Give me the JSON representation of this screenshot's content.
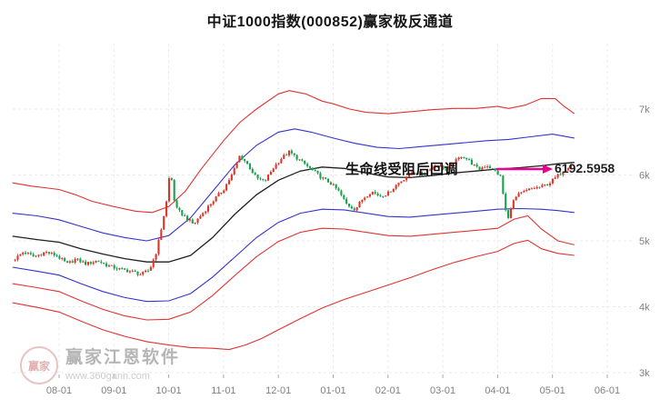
{
  "price_label": "6192.5958",
  "watermark": {
    "brand": "赢家江恩软件",
    "url": "www.360gann.com",
    "logo_text": "赢家"
  },
  "colors": {
    "up": "#dd3428",
    "down": "#18a14d",
    "channel_red": "#e03232",
    "channel_blue": "#3333cc",
    "lifeline": "#202020",
    "arrow": "#ec008c",
    "axis_text": "#808080",
    "grid": "#ebebeb"
  },
  "chart_data": {
    "type": "candlestick",
    "title": "中证1000指数(000852)赢家极反通道",
    "index_name": "中证1000指数",
    "symbol": "000852",
    "annotation": "生命线受阻后回调",
    "last_price": 6192.5958,
    "legend": "none",
    "grid": true,
    "x_axis": {
      "tick_labels": [
        "08-01",
        "09-01",
        "10-01",
        "11-01",
        "12-01",
        "01-01",
        "02-01",
        "03-01",
        "04-01",
        "05-01",
        "06-01"
      ]
    },
    "y_axis": {
      "tick_labels": [
        "7k",
        "6k",
        "5k",
        "4k",
        "3k"
      ],
      "tick_values": [
        7000,
        6000,
        5000,
        4000,
        3000
      ],
      "range": [
        3000,
        8030
      ]
    },
    "candles": {
      "t_start": -0.85,
      "t_end": 9.38,
      "t_step": 0.0476,
      "close_anchors": [
        [
          -0.85,
          4700
        ],
        [
          -0.65,
          4830
        ],
        [
          -0.45,
          4760
        ],
        [
          -0.25,
          4830
        ],
        [
          -0.05,
          4780
        ],
        [
          0.15,
          4650
        ],
        [
          0.3,
          4720
        ],
        [
          0.5,
          4650
        ],
        [
          0.7,
          4700
        ],
        [
          0.9,
          4620
        ],
        [
          1.1,
          4570
        ],
        [
          1.3,
          4540
        ],
        [
          1.5,
          4490
        ],
        [
          1.65,
          4560
        ],
        [
          1.78,
          4850
        ],
        [
          1.88,
          5250
        ],
        [
          1.96,
          5600
        ],
        [
          2.02,
          6050
        ],
        [
          2.06,
          5900
        ],
        [
          2.12,
          5500
        ],
        [
          2.25,
          5400
        ],
        [
          2.45,
          5250
        ],
        [
          2.6,
          5400
        ],
        [
          2.8,
          5600
        ],
        [
          3.0,
          5780
        ],
        [
          3.15,
          6000
        ],
        [
          3.3,
          6300
        ],
        [
          3.45,
          6150
        ],
        [
          3.6,
          5950
        ],
        [
          3.75,
          5900
        ],
        [
          3.9,
          6100
        ],
        [
          4.05,
          6250
        ],
        [
          4.2,
          6350
        ],
        [
          4.35,
          6250
        ],
        [
          4.5,
          6150
        ],
        [
          4.65,
          6050
        ],
        [
          4.8,
          5950
        ],
        [
          4.95,
          5880
        ],
        [
          5.1,
          5750
        ],
        [
          5.25,
          5550
        ],
        [
          5.4,
          5480
        ],
        [
          5.55,
          5650
        ],
        [
          5.7,
          5750
        ],
        [
          5.85,
          5680
        ],
        [
          6.0,
          5720
        ],
        [
          6.15,
          5850
        ],
        [
          6.3,
          5950
        ],
        [
          6.45,
          6050
        ],
        [
          6.6,
          6000
        ],
        [
          6.75,
          6100
        ],
        [
          6.9,
          6150
        ],
        [
          7.05,
          6080
        ],
        [
          7.2,
          6180
        ],
        [
          7.35,
          6300
        ],
        [
          7.5,
          6200
        ],
        [
          7.65,
          6080
        ],
        [
          7.8,
          6150
        ],
        [
          7.95,
          6060
        ],
        [
          8.05,
          5980
        ],
        [
          8.12,
          5600
        ],
        [
          8.18,
          5280
        ],
        [
          8.25,
          5550
        ],
        [
          8.35,
          5680
        ],
        [
          8.5,
          5750
        ],
        [
          8.65,
          5800
        ],
        [
          8.8,
          5820
        ],
        [
          8.95,
          5880
        ],
        [
          9.1,
          5990
        ],
        [
          9.25,
          6100
        ],
        [
          9.38,
          6192
        ]
      ]
    },
    "channel_lines": [
      {
        "name": "outer-upper-red",
        "color": "#e03232",
        "points": [
          [
            -0.85,
            5880
          ],
          [
            -0.5,
            5830
          ],
          [
            -0.2,
            5800
          ],
          [
            0,
            5780
          ],
          [
            0.3,
            5700
          ],
          [
            0.6,
            5600
          ],
          [
            1,
            5520
          ],
          [
            1.4,
            5450
          ],
          [
            1.7,
            5430
          ],
          [
            2,
            5520
          ],
          [
            2.3,
            5750
          ],
          [
            2.6,
            6100
          ],
          [
            3,
            6520
          ],
          [
            3.3,
            6800
          ],
          [
            3.6,
            7000
          ],
          [
            4,
            7230
          ],
          [
            4.2,
            7280
          ],
          [
            4.5,
            7230
          ],
          [
            4.8,
            7120
          ],
          [
            5,
            7080
          ],
          [
            5.3,
            7000
          ],
          [
            5.6,
            6950
          ],
          [
            6,
            6930
          ],
          [
            6.4,
            6960
          ],
          [
            6.8,
            6990
          ],
          [
            7.2,
            7010
          ],
          [
            7.6,
            7010
          ],
          [
            8,
            7040
          ],
          [
            8.2,
            7010
          ],
          [
            8.5,
            7060
          ],
          [
            8.8,
            7160
          ],
          [
            9.05,
            7160
          ],
          [
            9.2,
            7050
          ],
          [
            9.4,
            6930
          ]
        ]
      },
      {
        "name": "upper-blue",
        "color": "#3333cc",
        "points": [
          [
            -0.85,
            5420
          ],
          [
            -0.4,
            5380
          ],
          [
            0,
            5320
          ],
          [
            0.4,
            5220
          ],
          [
            0.8,
            5120
          ],
          [
            1.2,
            5050
          ],
          [
            1.6,
            5000
          ],
          [
            2,
            5080
          ],
          [
            2.4,
            5350
          ],
          [
            2.8,
            5750
          ],
          [
            3.2,
            6150
          ],
          [
            3.6,
            6450
          ],
          [
            4,
            6650
          ],
          [
            4.3,
            6700
          ],
          [
            4.6,
            6650
          ],
          [
            5,
            6560
          ],
          [
            5.4,
            6480
          ],
          [
            5.8,
            6420
          ],
          [
            6.2,
            6400
          ],
          [
            6.6,
            6430
          ],
          [
            7,
            6460
          ],
          [
            7.4,
            6490
          ],
          [
            7.8,
            6520
          ],
          [
            8.2,
            6540
          ],
          [
            8.6,
            6580
          ],
          [
            9,
            6620
          ],
          [
            9.4,
            6560
          ]
        ]
      },
      {
        "name": "lifeline-black",
        "color": "#202020",
        "points": [
          [
            -0.85,
            5070
          ],
          [
            -0.4,
            5020
          ],
          [
            0,
            4980
          ],
          [
            0.4,
            4880
          ],
          [
            0.8,
            4800
          ],
          [
            1.2,
            4730
          ],
          [
            1.6,
            4680
          ],
          [
            2,
            4680
          ],
          [
            2.4,
            4780
          ],
          [
            2.8,
            5050
          ],
          [
            3.2,
            5400
          ],
          [
            3.6,
            5700
          ],
          [
            4,
            5920
          ],
          [
            4.4,
            6060
          ],
          [
            4.8,
            6120
          ],
          [
            5.2,
            6100
          ],
          [
            5.6,
            6030
          ],
          [
            6,
            5970
          ],
          [
            6.4,
            5960
          ],
          [
            6.8,
            5990
          ],
          [
            7.2,
            6030
          ],
          [
            7.6,
            6060
          ],
          [
            8,
            6090
          ],
          [
            8.4,
            6110
          ],
          [
            8.8,
            6140
          ],
          [
            9.1,
            6170
          ],
          [
            9.4,
            6190
          ]
        ]
      },
      {
        "name": "lower-blue",
        "color": "#3333cc",
        "points": [
          [
            -0.85,
            4600
          ],
          [
            -0.4,
            4540
          ],
          [
            0,
            4480
          ],
          [
            0.4,
            4350
          ],
          [
            0.8,
            4230
          ],
          [
            1.2,
            4140
          ],
          [
            1.6,
            4080
          ],
          [
            2,
            4090
          ],
          [
            2.4,
            4200
          ],
          [
            2.8,
            4450
          ],
          [
            3.2,
            4750
          ],
          [
            3.6,
            5050
          ],
          [
            4,
            5280
          ],
          [
            4.4,
            5420
          ],
          [
            4.8,
            5480
          ],
          [
            5.2,
            5470
          ],
          [
            5.6,
            5420
          ],
          [
            6,
            5370
          ],
          [
            6.4,
            5360
          ],
          [
            6.8,
            5390
          ],
          [
            7.2,
            5420
          ],
          [
            7.6,
            5450
          ],
          [
            8,
            5480
          ],
          [
            8.4,
            5490
          ],
          [
            8.8,
            5480
          ],
          [
            9.1,
            5460
          ],
          [
            9.4,
            5430
          ]
        ]
      },
      {
        "name": "lower-red",
        "color": "#e03232",
        "points": [
          [
            -0.85,
            4350
          ],
          [
            -0.4,
            4290
          ],
          [
            0,
            4230
          ],
          [
            0.4,
            4090
          ],
          [
            0.8,
            3960
          ],
          [
            1.2,
            3860
          ],
          [
            1.6,
            3800
          ],
          [
            2,
            3810
          ],
          [
            2.4,
            3920
          ],
          [
            2.8,
            4170
          ],
          [
            3.2,
            4470
          ],
          [
            3.6,
            4760
          ],
          [
            4,
            4990
          ],
          [
            4.4,
            5130
          ],
          [
            4.8,
            5190
          ],
          [
            5.2,
            5180
          ],
          [
            5.6,
            5130
          ],
          [
            6,
            5080
          ],
          [
            6.4,
            5070
          ],
          [
            6.8,
            5100
          ],
          [
            7.2,
            5130
          ],
          [
            7.6,
            5160
          ],
          [
            8,
            5190
          ],
          [
            8.3,
            5330
          ],
          [
            8.55,
            5380
          ],
          [
            8.8,
            5180
          ],
          [
            9.1,
            5000
          ],
          [
            9.4,
            4940
          ]
        ]
      },
      {
        "name": "outer-lower-red",
        "color": "#e03232",
        "points": [
          [
            -0.85,
            4060
          ],
          [
            -0.4,
            3990
          ],
          [
            0,
            3920
          ],
          [
            0.4,
            3780
          ],
          [
            0.8,
            3650
          ],
          [
            1.2,
            3550
          ],
          [
            1.6,
            3470
          ],
          [
            2,
            3420
          ],
          [
            2.4,
            3380
          ],
          [
            2.8,
            3370
          ],
          [
            3.1,
            3350
          ],
          [
            3.4,
            3420
          ],
          [
            3.7,
            3520
          ],
          [
            4,
            3650
          ],
          [
            4.4,
            3820
          ],
          [
            4.8,
            3980
          ],
          [
            5.2,
            4110
          ],
          [
            5.6,
            4220
          ],
          [
            6,
            4330
          ],
          [
            6.4,
            4440
          ],
          [
            6.8,
            4560
          ],
          [
            7.2,
            4670
          ],
          [
            7.6,
            4760
          ],
          [
            8,
            4840
          ],
          [
            8.3,
            4960
          ],
          [
            8.55,
            5010
          ],
          [
            8.8,
            4880
          ],
          [
            9.1,
            4810
          ],
          [
            9.4,
            4780
          ]
        ]
      }
    ]
  }
}
